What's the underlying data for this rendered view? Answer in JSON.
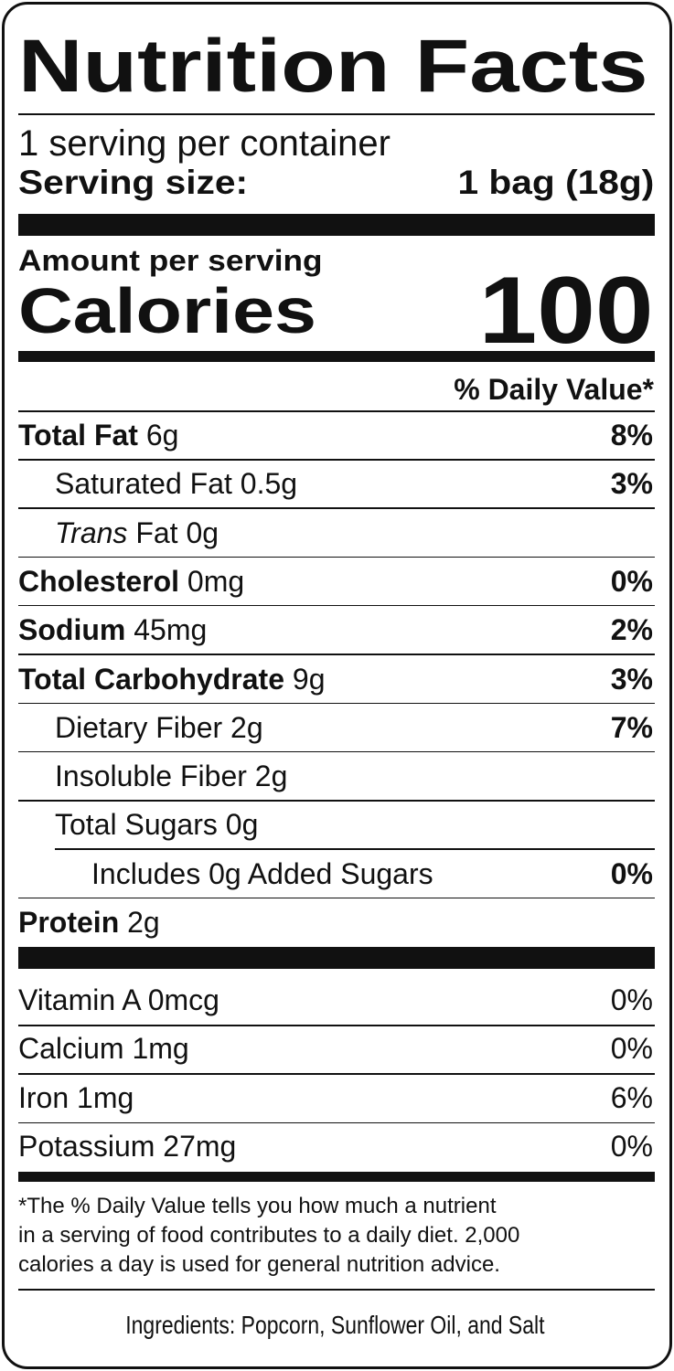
{
  "title": "Nutrition Facts",
  "servings_per_container": "1 serving per container",
  "serving_size": {
    "label": "Serving size:",
    "value": "1 bag (18g)"
  },
  "amount_per_serving": "Amount per serving",
  "calories": {
    "label": "Calories",
    "value": "100"
  },
  "daily_value_header": "% Daily Value*",
  "nutrients": [
    {
      "name": "Total Fat",
      "amount": "6g",
      "dv": "8%"
    },
    {
      "name": "Saturated Fat",
      "amount": "0.5g",
      "dv": "3%"
    },
    {
      "name_italic": "Trans",
      "name": "Fat",
      "amount": "0g"
    },
    {
      "name": "Cholesterol",
      "amount": "0mg",
      "dv": "0%"
    },
    {
      "name": "Sodium",
      "amount": "45mg",
      "dv": "2%"
    },
    {
      "name": "Total Carbohydrate",
      "amount": "9g",
      "dv": "3%"
    },
    {
      "name": "Dietary Fiber",
      "amount": "2g",
      "dv": "7%"
    },
    {
      "name": "Insoluble Fiber",
      "amount": "2g"
    },
    {
      "name": "Total Sugars",
      "amount": "0g"
    },
    {
      "name": "Includes 0g Added Sugars",
      "dv": "0%"
    },
    {
      "name": "Protein",
      "amount": "2g"
    }
  ],
  "vitamins": [
    {
      "name": "Vitamin A",
      "amount": "0mcg",
      "dv": "0%"
    },
    {
      "name": "Calcium",
      "amount": "1mg",
      "dv": "0%"
    },
    {
      "name": "Iron",
      "amount": "1mg",
      "dv": "6%"
    },
    {
      "name": "Potassium",
      "amount": "27mg",
      "dv": "0%"
    }
  ],
  "footnote": [
    "*The % Daily Value tells you how much a nutrient",
    "in a serving of food contributes to a daily diet. 2,000",
    "calories a day is used for general nutrition advice."
  ],
  "ingredients": "Ingredients: Popcorn, Sunflower Oil, and Salt"
}
